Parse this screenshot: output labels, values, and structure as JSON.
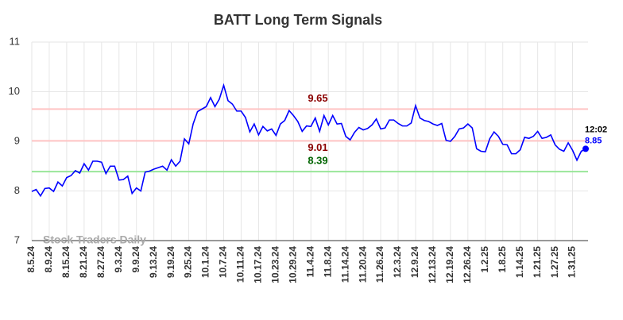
{
  "chart_data": {
    "type": "line",
    "title": "BATT Long Term Signals",
    "categories": [
      "8.5.24",
      null,
      null,
      null,
      "8.9.24",
      null,
      null,
      null,
      "8.15.24",
      null,
      null,
      null,
      "8.21.24",
      null,
      null,
      null,
      "8.27.24",
      null,
      null,
      null,
      "9.3.24",
      null,
      null,
      null,
      "9.9.24",
      null,
      null,
      null,
      "9.13.24",
      null,
      null,
      null,
      "9.19.24",
      null,
      null,
      null,
      "9.25.24",
      null,
      null,
      null,
      "10.1.24",
      null,
      null,
      null,
      "10.7.24",
      null,
      null,
      null,
      "10.11.24",
      null,
      null,
      null,
      "10.17.24",
      null,
      null,
      null,
      "10.23.24",
      null,
      null,
      null,
      "10.29.24",
      null,
      null,
      null,
      "11.4.24",
      null,
      null,
      null,
      "11.8.24",
      null,
      null,
      null,
      "11.14.24",
      null,
      null,
      null,
      "11.20.24",
      null,
      null,
      null,
      "11.26.24",
      null,
      null,
      null,
      "12.3.24",
      null,
      null,
      null,
      "12.9.24",
      null,
      null,
      null,
      "12.13.24",
      null,
      null,
      null,
      "12.19.24",
      null,
      null,
      null,
      "12.26.24",
      null,
      null,
      null,
      "1.2.25",
      null,
      null,
      null,
      "1.8.25",
      null,
      null,
      null,
      "1.14.25",
      null,
      null,
      null,
      "1.21.25",
      null,
      null,
      null,
      "1.27.25",
      null,
      null,
      null,
      "1.31.25",
      null,
      null,
      null
    ],
    "values": [
      7.99,
      8.03,
      7.9,
      8.05,
      8.06,
      7.99,
      8.18,
      8.1,
      8.27,
      8.31,
      8.41,
      8.36,
      8.55,
      8.42,
      8.6,
      8.6,
      8.58,
      8.35,
      8.5,
      8.5,
      8.22,
      8.23,
      8.3,
      7.95,
      8.06,
      8.0,
      8.38,
      8.4,
      8.44,
      8.47,
      8.5,
      8.42,
      8.63,
      8.5,
      8.6,
      9.05,
      8.95,
      9.35,
      9.6,
      9.65,
      9.7,
      9.88,
      9.7,
      9.85,
      10.13,
      9.82,
      9.75,
      9.61,
      9.61,
      9.48,
      9.19,
      9.35,
      9.13,
      9.3,
      9.21,
      9.25,
      9.12,
      9.35,
      9.42,
      9.62,
      9.52,
      9.4,
      9.2,
      9.31,
      9.3,
      9.47,
      9.2,
      9.52,
      9.33,
      9.52,
      9.35,
      9.36,
      9.1,
      9.03,
      9.18,
      9.28,
      9.23,
      9.26,
      9.33,
      9.45,
      9.25,
      9.27,
      9.43,
      9.43,
      9.36,
      9.31,
      9.31,
      9.37,
      9.72,
      9.47,
      9.42,
      9.4,
      9.35,
      9.32,
      9.36,
      9.02,
      9.0,
      9.1,
      9.25,
      9.27,
      9.35,
      9.27,
      8.85,
      8.8,
      8.79,
      9.05,
      9.19,
      9.1,
      8.94,
      8.93,
      8.75,
      8.75,
      8.83,
      9.08,
      9.06,
      9.1,
      9.2,
      9.06,
      9.08,
      9.13,
      8.93,
      8.84,
      8.8,
      8.97,
      8.82,
      8.62,
      8.8,
      8.85
    ],
    "color": "#0000ff",
    "ylim": [
      7,
      11
    ],
    "yticks": [
      7,
      8,
      9,
      10,
      11
    ],
    "grid": true,
    "hlines": [
      {
        "value": 9.65,
        "color": "#ffc4c4",
        "label_color": "#8b0000"
      },
      {
        "value": 9.01,
        "color": "#ffc4c4",
        "label_color": "#8b0000"
      },
      {
        "value": 8.39,
        "color": "#99e699",
        "label_color": "#006400"
      }
    ],
    "last_time": "12:02",
    "watermark": "Stock Traders Daily"
  }
}
